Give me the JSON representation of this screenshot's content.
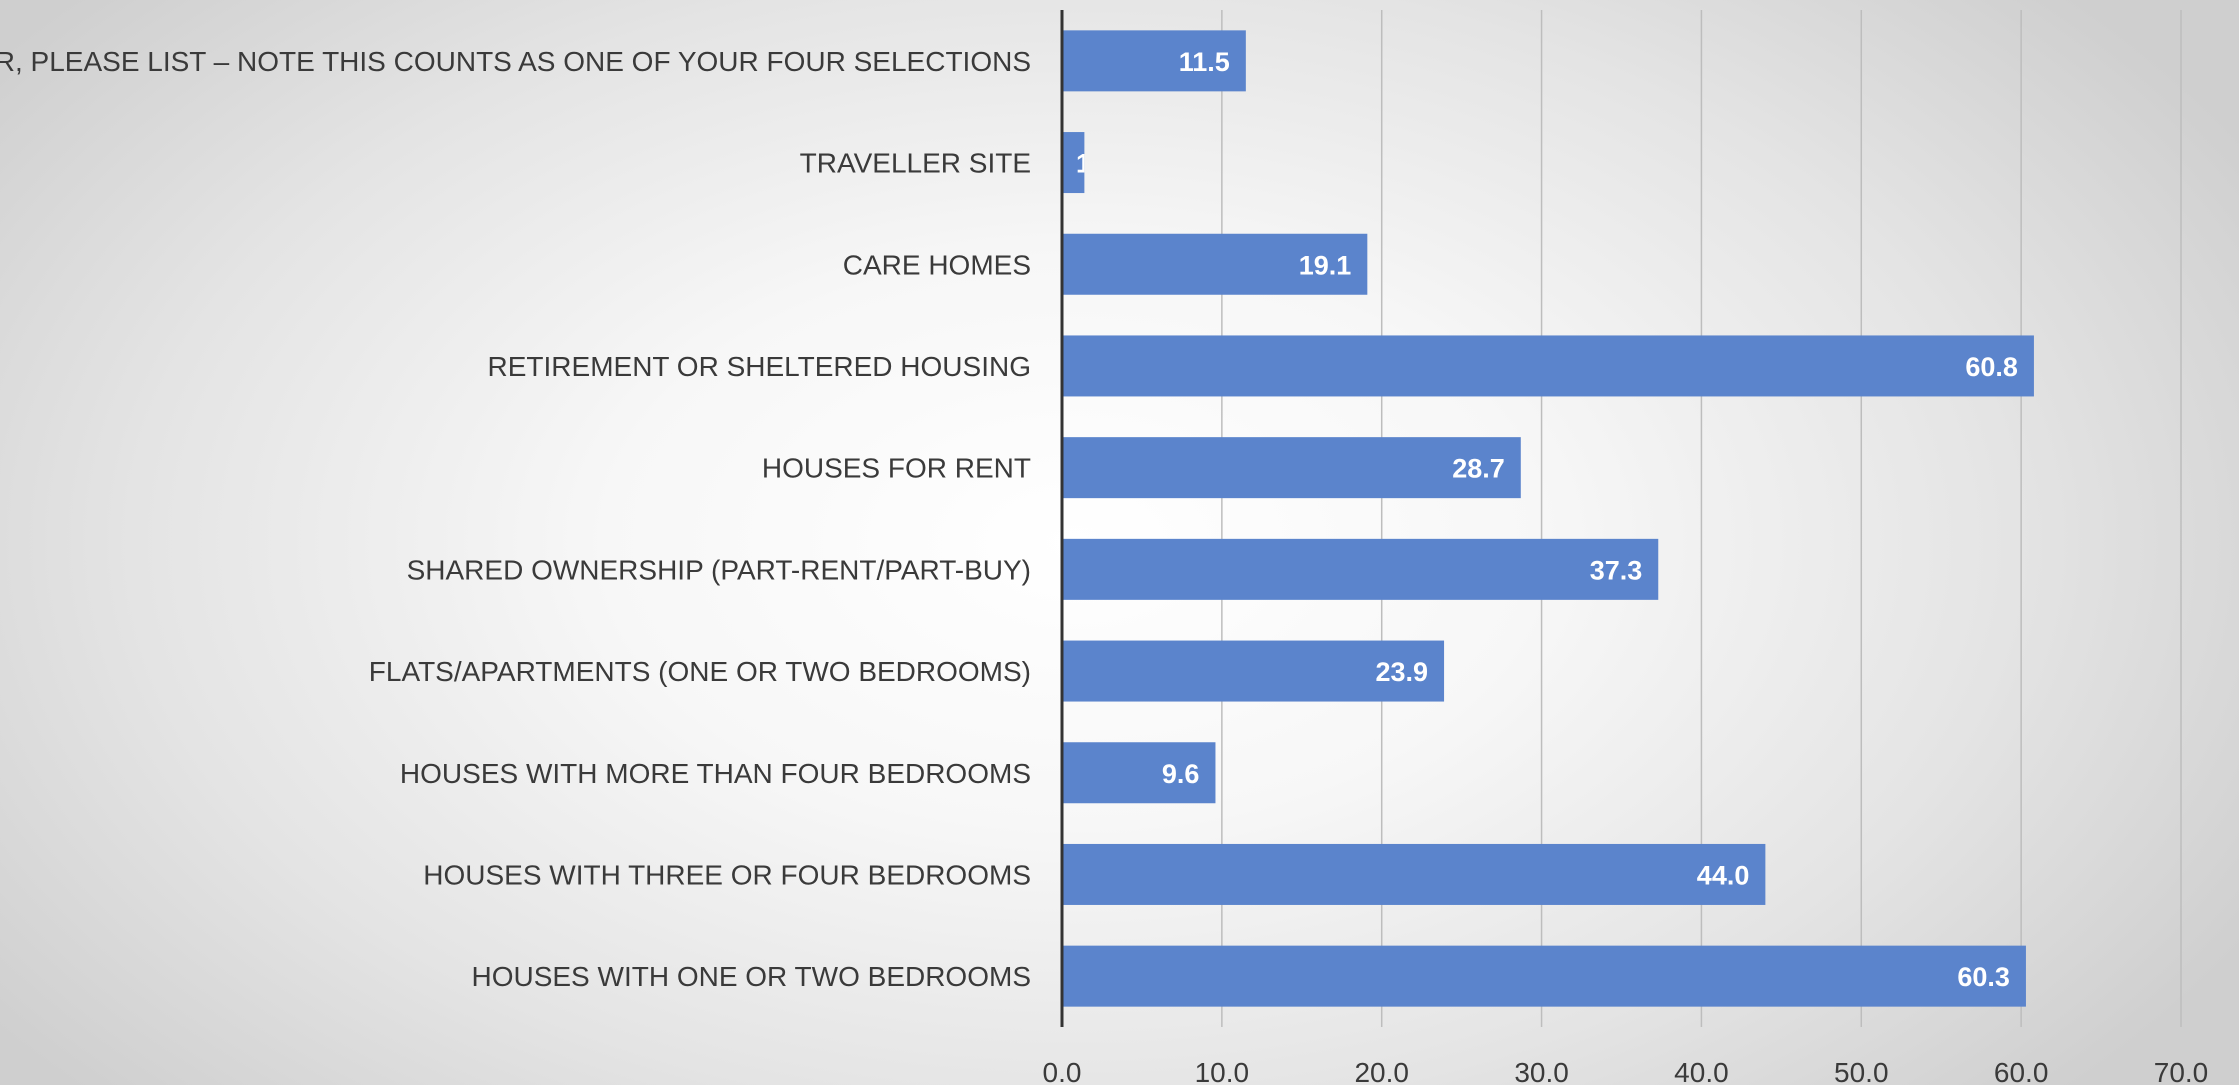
{
  "chart_data": {
    "type": "bar",
    "orientation": "horizontal",
    "title": "",
    "xlabel": "",
    "ylabel": "",
    "categories": [
      "OTHER, PLEASE LIST – NOTE THIS COUNTS AS ONE OF YOUR FOUR SELECTIONS",
      "TRAVELLER SITE",
      "CARE HOMES",
      "RETIREMENT OR SHELTERED HOUSING",
      "HOUSES FOR RENT",
      "SHARED OWNERSHIP (PART-RENT/PART-BUY)",
      "FLATS/APARTMENTS (ONE OR TWO BEDROOMS)",
      "HOUSES WITH MORE THAN FOUR BEDROOMS",
      "HOUSES WITH THREE OR FOUR BEDROOMS",
      "HOUSES WITH ONE OR TWO BEDROOMS"
    ],
    "values": [
      11.5,
      1.4,
      19.1,
      60.8,
      28.7,
      37.3,
      23.9,
      9.6,
      44.0,
      60.3
    ],
    "data_labels": [
      "11.5",
      "1",
      "19.1",
      "60.8",
      "28.7",
      "37.3",
      "23.9",
      "9.6",
      "44.0",
      "60.3"
    ],
    "xlim": [
      0,
      70
    ],
    "x_ticks": [
      "0.0",
      "10.0",
      "20.0",
      "30.0",
      "40.0",
      "50.0",
      "60.0",
      "70.0"
    ],
    "grid": "vertical",
    "legend": "none",
    "bar_color": "#5b84cc",
    "axis_color": "#333333"
  }
}
